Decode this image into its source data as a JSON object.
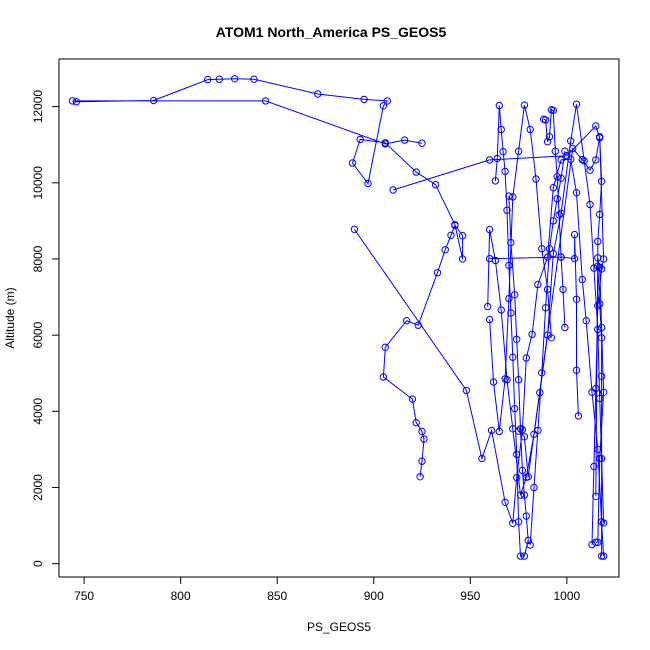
{
  "chart_data": {
    "type": "line",
    "title": "ATOM1 North_America PS_GEOS5",
    "xlabel": "PS_GEOS5",
    "ylabel": "Altitude (m)",
    "xlim": [
      737,
      1027
    ],
    "ylim": [
      -350,
      13250
    ],
    "xticks": [
      750,
      800,
      850,
      900,
      950,
      1000
    ],
    "yticks": [
      0,
      2000,
      4000,
      6000,
      8000,
      10000,
      12000
    ],
    "grid": false,
    "legend": "none",
    "markers": "open-circle",
    "color": "#0000ff",
    "series": [
      {
        "x": [
          924,
          925,
          926,
          925,
          922,
          920,
          905,
          906,
          917,
          923,
          933,
          937,
          940,
          942,
          946,
          946,
          942,
          932,
          922,
          906,
          893,
          889,
          897,
          905,
          907,
          895,
          871,
          838,
          828,
          820,
          814,
          786,
          746,
          744,
          844,
          906,
          916,
          925
        ],
        "y": [
          2280,
          2690,
          3270,
          3470,
          3700,
          4320,
          4900,
          5680,
          6380,
          6260,
          7640,
          8240,
          8620,
          8880,
          8610,
          8000,
          8900,
          9950,
          10280,
          11050,
          11140,
          10520,
          9980,
          12020,
          12150,
          12190,
          12330,
          12720,
          12730,
          12720,
          12710,
          12160,
          12130,
          12150,
          12150,
          11020,
          11120,
          11040
        ]
      },
      {
        "x": [
          890,
          948,
          956,
          961,
          968,
          972,
          974,
          977,
          979,
          982,
          985,
          990,
          993,
          997,
          1002,
          1005,
          1008,
          1010,
          1013,
          1016,
          1018,
          1019
        ],
        "y": [
          8780,
          4550,
          2760,
          3500,
          1610,
          1060,
          2260,
          3520,
          5400,
          6020,
          7330,
          8050,
          9870,
          10600,
          10620,
          9740,
          7460,
          6380,
          4500,
          3000,
          1100,
          200
        ]
      },
      {
        "x": [
          1019,
          1018,
          1017,
          1016,
          1014,
          1012,
          1009,
          1005,
          1002,
          997,
          993,
          990,
          986,
          983,
          979,
          976,
          972,
          969,
          966,
          963,
          960,
          959
        ],
        "y": [
          1070,
          2760,
          4340,
          6150,
          7760,
          9430,
          10580,
          12060,
          11100,
          9200,
          8140,
          6000,
          4490,
          3400,
          2270,
          1800,
          3540,
          4830,
          6660,
          7960,
          8770,
          6750
        ]
      },
      {
        "x": [
          960,
          962,
          965,
          968,
          970,
          972,
          975,
          978,
          981,
          984,
          987,
          990,
          992
        ],
        "y": [
          6410,
          4770,
          3470,
          4850,
          6960,
          9630,
          10830,
          12040,
          11400,
          10100,
          8270,
          7200,
          5930
        ]
      },
      {
        "x": [
          910,
          960,
          1000,
          1015,
          1017,
          1018,
          1017,
          1016,
          1016,
          1017,
          1018,
          1018,
          1018
        ],
        "y": [
          9810,
          10600,
          10710,
          11490,
          11180,
          10040,
          9170,
          8460,
          7810,
          6820,
          5930,
          4920,
          200
        ]
      },
      {
        "x": [
          960,
          997,
          1004,
          1004,
          1005,
          1005,
          1006
        ],
        "y": [
          8010,
          8050,
          8010,
          8640,
          6940,
          5080,
          3880
        ]
      },
      {
        "x": [
          970,
          971,
          973,
          974,
          975,
          976,
          977,
          978,
          979,
          980,
          978,
          976,
          975,
          974,
          973,
          972,
          971,
          970,
          969,
          968,
          967,
          966,
          965,
          964,
          963
        ],
        "y": [
          9650,
          8430,
          7060,
          5890,
          4830,
          3540,
          2450,
          1800,
          1250,
          610,
          200,
          200,
          1100,
          2870,
          4070,
          5420,
          6580,
          7830,
          9280,
          10300,
          10820,
          11400,
          12030,
          10640,
          10050
        ]
      },
      {
        "x": [
          988,
          989,
          990,
          991,
          992,
          993,
          994,
          995,
          996,
          997,
          998,
          999
        ],
        "y": [
          11670,
          11650,
          11080,
          11210,
          11920,
          11900,
          10830,
          10160,
          9160,
          8050,
          7200,
          6200
        ]
      },
      {
        "x": [
          975,
          978,
          980,
          1003,
          1008,
          1012,
          1015,
          1017,
          1019,
          1018,
          1016,
          1015,
          1014,
          1013
        ],
        "y": [
          3480,
          3330,
          2280,
          10900,
          10610,
          10330,
          10600,
          11210,
          8000,
          7740,
          6770,
          4600,
          2550,
          500
        ]
      },
      {
        "x": [
          981,
          983,
          985,
          987,
          989,
          991,
          993,
          995,
          997,
          999
        ],
        "y": [
          490,
          2000,
          3500,
          5010,
          6720,
          8270,
          9000,
          9580,
          10120,
          10830
        ]
      },
      {
        "x": [
          1015,
          1016,
          1017,
          1019,
          1018,
          1017,
          1016,
          1015
        ],
        "y": [
          560,
          560,
          2760,
          4500,
          6200,
          7780,
          8030,
          1770
        ]
      }
    ]
  }
}
